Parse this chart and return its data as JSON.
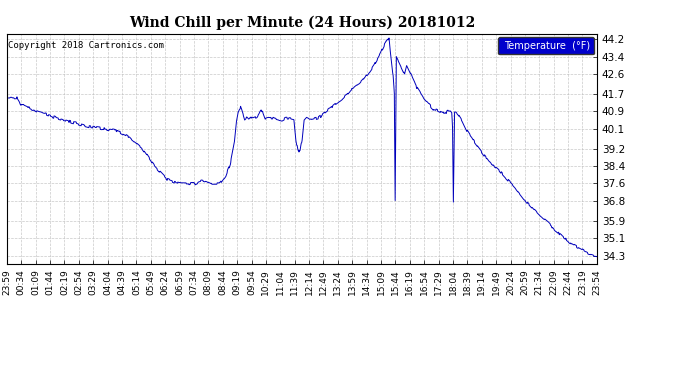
{
  "title": "Wind Chill per Minute (24 Hours) 20181012",
  "legend_label": "Temperature  (°F)",
  "copyright_text": "Copyright 2018 Cartronics.com",
  "line_color": "#0000bb",
  "bg_color": "#ffffff",
  "plot_bg_color": "#ffffff",
  "grid_color": "#bbbbbb",
  "legend_bg": "#0000cc",
  "legend_text_color": "#ffffff",
  "ylim_min": 33.9,
  "ylim_max": 44.45,
  "yticks": [
    34.3,
    35.1,
    35.9,
    36.8,
    37.6,
    38.4,
    39.2,
    40.1,
    40.9,
    41.7,
    42.6,
    43.4,
    44.2
  ],
  "xtick_labels": [
    "23:59",
    "00:34",
    "01:09",
    "01:44",
    "02:19",
    "02:54",
    "03:29",
    "04:04",
    "04:39",
    "05:14",
    "05:49",
    "06:24",
    "06:59",
    "07:34",
    "08:09",
    "08:44",
    "09:19",
    "09:54",
    "10:29",
    "11:04",
    "11:39",
    "12:14",
    "12:49",
    "13:24",
    "13:59",
    "14:34",
    "15:09",
    "15:44",
    "16:19",
    "16:54",
    "17:29",
    "18:04",
    "18:39",
    "19:14",
    "19:49",
    "20:24",
    "20:59",
    "21:34",
    "22:09",
    "22:44",
    "23:19",
    "23:54"
  ]
}
